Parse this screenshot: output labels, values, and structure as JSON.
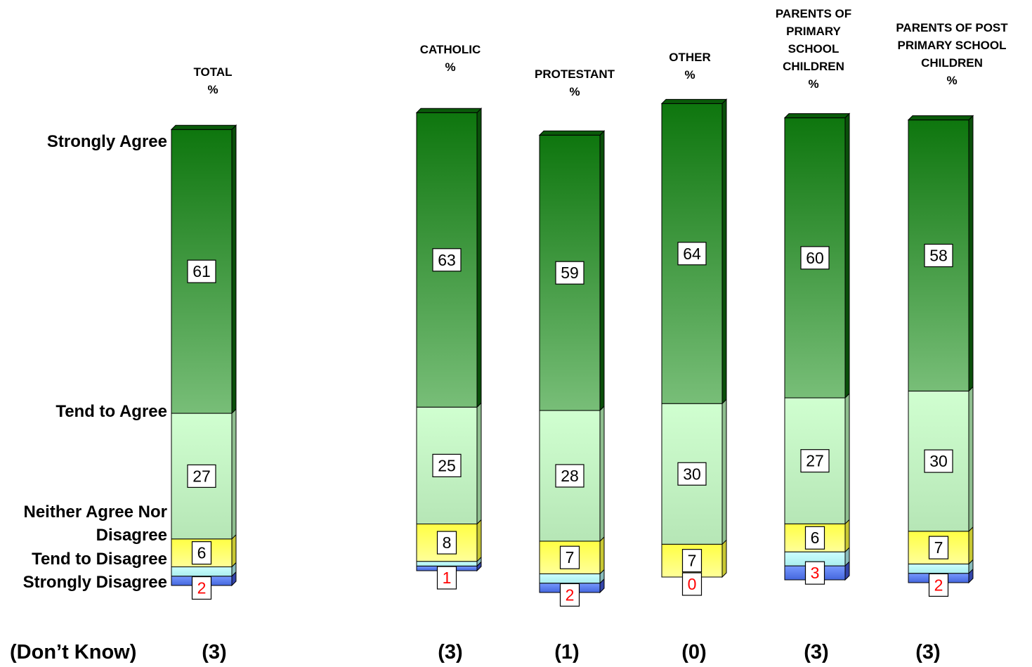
{
  "chart_data": {
    "type": "bar",
    "stacked": true,
    "unit": "%",
    "categories": [
      "TOTAL\n%",
      "CATHOLIC\n%",
      "PROTESTANT\n%",
      "OTHER\n%",
      "PARENTS OF\nPRIMARY\nSCHOOL\nCHILDREN\n%",
      "PARENTS OF POST\nPRIMARY SCHOOL\nCHILDREN\n%"
    ],
    "series": [
      {
        "name": "Strongly Agree",
        "values": [
          61,
          63,
          59,
          64,
          60,
          58
        ]
      },
      {
        "name": "Tend to Agree",
        "values": [
          27,
          25,
          28,
          30,
          27,
          30
        ]
      },
      {
        "name": "Neither Agree Nor Disagree",
        "values": [
          6,
          8,
          7,
          7,
          6,
          7
        ]
      },
      {
        "name": "Tend to Disagree",
        "values": [
          2,
          1,
          2,
          0,
          3,
          2
        ]
      },
      {
        "name": "Strongly Disagree",
        "values": [
          2,
          1,
          2,
          0,
          3,
          2
        ]
      }
    ],
    "row_labels": [
      "Strongly Agree",
      "Tend to Agree",
      "Neither Agree Nor\nDisagree",
      "Tend to Disagree",
      "Strongly Disagree"
    ],
    "dont_know": {
      "label": "(Don’t Know)",
      "values": [
        "(3)",
        "(3)",
        "(1)",
        "(0)",
        "(3)",
        "(3)"
      ]
    },
    "visible_value_labels": [
      [
        "61",
        "27",
        "6",
        "2"
      ],
      [
        "63",
        "25",
        "8",
        "1"
      ],
      [
        "59",
        "28",
        "7",
        "2"
      ],
      [
        "64",
        "30",
        "7",
        "0"
      ],
      [
        "60",
        "27",
        "6",
        "3"
      ],
      [
        "58",
        "30",
        "7",
        "2"
      ]
    ],
    "colors": {
      "strongly_agree_top": "#107a10",
      "strongly_agree_bottom": "#74bb74",
      "tend_agree_top": "#ccffcc",
      "tend_agree_bottom": "#b8e8b8",
      "neither": "#ffff66",
      "tend_disagree": "#ccffff",
      "strongly_disagree": "#6688ee",
      "small_label": "#ff0000"
    },
    "legend": "none",
    "grid": false
  }
}
